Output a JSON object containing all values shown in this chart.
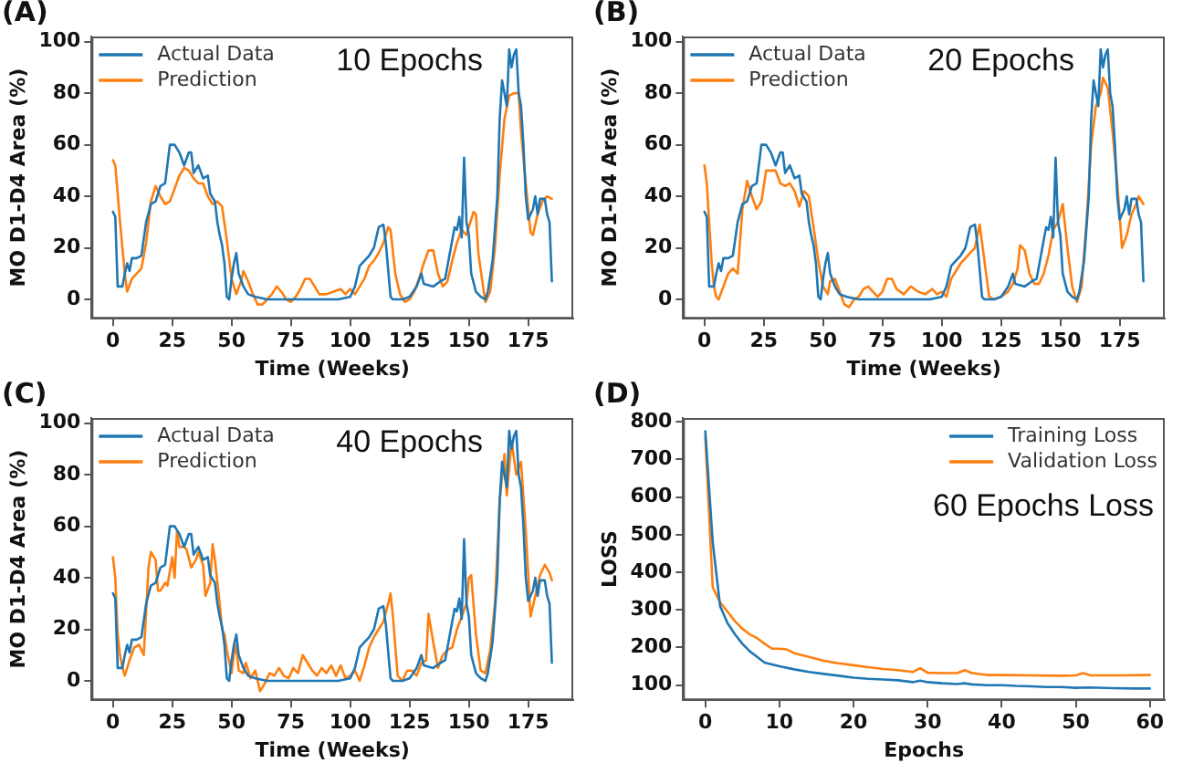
{
  "chart_data": [
    {
      "type": "line",
      "title": "10 Epochs",
      "xlabel": "Time (Weeks)",
      "ylabel": "MO D1-D4 Area (%)",
      "annotations": [
        "(A)"
      ],
      "legend": "top left",
      "xlim": [
        -9,
        194
      ],
      "ylim": [
        -7.5,
        102
      ],
      "xticks": [
        0,
        25,
        50,
        75,
        100,
        125,
        150,
        175
      ],
      "yticks": [
        0,
        20,
        40,
        60,
        80,
        100
      ],
      "series": [
        {
          "name": "Actual Data",
          "color": "#1f77b4",
          "x": [
            0,
            1,
            2,
            4,
            5,
            6,
            7,
            8,
            10,
            12,
            14,
            16,
            18,
            20,
            22,
            24,
            26,
            28,
            30,
            32,
            33,
            34,
            36,
            38,
            40,
            41,
            43,
            44,
            45,
            46,
            47,
            48,
            49,
            50,
            51,
            52,
            53,
            55,
            57,
            60,
            65,
            75,
            85,
            95,
            100,
            102,
            104,
            106,
            108,
            110,
            112,
            114,
            115,
            117,
            118,
            122,
            125,
            128,
            130,
            131,
            135,
            138,
            140,
            142,
            144,
            145,
            146,
            147,
            148,
            149,
            150,
            151,
            153,
            155,
            157,
            158,
            160,
            162,
            163,
            164,
            165,
            166,
            167,
            168,
            169,
            170,
            171,
            172,
            173,
            174,
            175,
            177,
            178,
            179,
            180,
            182,
            183,
            184,
            185
          ],
          "values": [
            34,
            32,
            5,
            5,
            10,
            14,
            11,
            16,
            16,
            17,
            30,
            37,
            38,
            44,
            45,
            60,
            60,
            57,
            52,
            57,
            57,
            49,
            52,
            47,
            48,
            41,
            38,
            30,
            25,
            21,
            14,
            1,
            0,
            8,
            14,
            18,
            10,
            5,
            2,
            1,
            0,
            0,
            0,
            0,
            1,
            5,
            13,
            15,
            17,
            20,
            28,
            29,
            22,
            1,
            0,
            0,
            1,
            5,
            10,
            6,
            5,
            7,
            8,
            18,
            28,
            27,
            32,
            24,
            55,
            30,
            25,
            10,
            3,
            1,
            0,
            3,
            15,
            40,
            70,
            85,
            80,
            75,
            97,
            90,
            95,
            97,
            80,
            75,
            60,
            40,
            31,
            35,
            40,
            33,
            39,
            39,
            33,
            30,
            7
          ]
        },
        {
          "name": "Prediction",
          "color": "#ff7f0e",
          "x": [
            0,
            1,
            3,
            5,
            6,
            8,
            10,
            12,
            14,
            16,
            18,
            20,
            22,
            24,
            26,
            28,
            30,
            32,
            34,
            36,
            38,
            40,
            42,
            44,
            46,
            48,
            50,
            52,
            54,
            55,
            57,
            59,
            61,
            63,
            65,
            67,
            69,
            71,
            73,
            75,
            77,
            79,
            81,
            83,
            85,
            87,
            90,
            93,
            96,
            98,
            100,
            102,
            104,
            106,
            108,
            110,
            112,
            114,
            116,
            117,
            119,
            121,
            123,
            125,
            127,
            129,
            131,
            133,
            135,
            137,
            139,
            141,
            143,
            145,
            147,
            149,
            151,
            152,
            153,
            154,
            156,
            157,
            159,
            161,
            163,
            165,
            167,
            169,
            171,
            172,
            174,
            176,
            177,
            179,
            181,
            183,
            185
          ],
          "values": [
            54,
            52,
            30,
            10,
            3,
            8,
            10,
            12,
            22,
            38,
            44,
            40,
            37,
            38,
            43,
            48,
            51,
            50,
            47,
            45,
            45,
            40,
            37,
            38,
            36,
            23,
            8,
            2,
            7,
            11,
            7,
            2,
            -2,
            -2,
            0,
            2,
            5,
            3,
            0,
            -1,
            1,
            4,
            8,
            8,
            5,
            2,
            2,
            3,
            4,
            2,
            4,
            2,
            5,
            8,
            13,
            15,
            18,
            22,
            28,
            27,
            10,
            2,
            -1,
            0,
            3,
            8,
            14,
            19,
            19,
            10,
            5,
            7,
            15,
            22,
            27,
            25,
            31,
            34,
            33,
            18,
            5,
            -1,
            3,
            20,
            48,
            70,
            79,
            80,
            80,
            65,
            45,
            26,
            25,
            33,
            38,
            40,
            39
          ]
        }
      ]
    },
    {
      "type": "line",
      "title": "20 Epochs",
      "xlabel": "Time (Weeks)",
      "ylabel": "MO D1-D4 Area (%)",
      "annotations": [
        "(B)"
      ],
      "legend": "top left",
      "xlim": [
        -9,
        194
      ],
      "ylim": [
        -7.5,
        102
      ],
      "xticks": [
        0,
        25,
        50,
        75,
        100,
        125,
        150,
        175
      ],
      "yticks": [
        0,
        20,
        40,
        60,
        80,
        100
      ],
      "series": [
        {
          "name": "Actual Data",
          "color": "#1f77b4",
          "x": [
            0,
            1,
            2,
            4,
            5,
            6,
            7,
            8,
            10,
            12,
            14,
            16,
            18,
            20,
            22,
            24,
            26,
            28,
            30,
            32,
            33,
            34,
            36,
            38,
            40,
            41,
            43,
            44,
            45,
            46,
            47,
            48,
            49,
            50,
            51,
            52,
            53,
            55,
            57,
            60,
            65,
            75,
            85,
            95,
            100,
            102,
            104,
            106,
            108,
            110,
            112,
            114,
            115,
            117,
            118,
            122,
            125,
            128,
            130,
            131,
            135,
            138,
            140,
            142,
            144,
            145,
            146,
            147,
            148,
            149,
            150,
            151,
            153,
            155,
            157,
            158,
            160,
            162,
            163,
            164,
            165,
            166,
            167,
            168,
            169,
            170,
            171,
            172,
            173,
            174,
            175,
            177,
            178,
            179,
            180,
            182,
            183,
            184,
            185
          ],
          "values": [
            34,
            32,
            5,
            5,
            10,
            14,
            11,
            16,
            16,
            17,
            30,
            37,
            38,
            44,
            45,
            60,
            60,
            57,
            52,
            57,
            57,
            49,
            52,
            47,
            48,
            41,
            38,
            30,
            25,
            21,
            14,
            1,
            0,
            8,
            14,
            18,
            10,
            5,
            2,
            1,
            0,
            0,
            0,
            0,
            1,
            5,
            13,
            15,
            17,
            20,
            28,
            29,
            22,
            1,
            0,
            0,
            1,
            5,
            10,
            6,
            5,
            7,
            8,
            18,
            28,
            27,
            32,
            24,
            55,
            30,
            25,
            10,
            3,
            1,
            0,
            3,
            15,
            40,
            70,
            85,
            80,
            75,
            97,
            90,
            95,
            97,
            80,
            75,
            60,
            40,
            31,
            35,
            40,
            33,
            39,
            39,
            33,
            30,
            7
          ]
        },
        {
          "name": "Prediction",
          "color": "#ff7f0e",
          "x": [
            0,
            1,
            3,
            4,
            5,
            6,
            8,
            10,
            12,
            14,
            16,
            18,
            20,
            22,
            24,
            26,
            28,
            30,
            32,
            34,
            36,
            38,
            40,
            42,
            44,
            46,
            48,
            50,
            52,
            53,
            55,
            57,
            59,
            61,
            63,
            65,
            67,
            69,
            71,
            73,
            75,
            77,
            79,
            81,
            84,
            87,
            90,
            93,
            96,
            98,
            100,
            102,
            104,
            106,
            108,
            110,
            112,
            114,
            116,
            118,
            120,
            122,
            125,
            128,
            130,
            132,
            133,
            135,
            137,
            139,
            141,
            143,
            145,
            147,
            149,
            151,
            153,
            155,
            156,
            157,
            159,
            161,
            163,
            165,
            167,
            168,
            170,
            172,
            174,
            176,
            178,
            180,
            182,
            183,
            185
          ],
          "values": [
            52,
            45,
            15,
            5,
            1,
            0,
            5,
            10,
            12,
            10,
            35,
            46,
            40,
            35,
            38,
            50,
            50,
            50,
            45,
            44,
            45,
            42,
            36,
            42,
            40,
            28,
            15,
            5,
            2,
            7,
            8,
            3,
            -2,
            -3,
            0,
            1,
            4,
            5,
            3,
            1,
            3,
            8,
            8,
            4,
            2,
            5,
            3,
            2,
            4,
            2,
            3,
            1,
            8,
            11,
            14,
            16,
            18,
            20,
            29,
            15,
            1,
            0,
            1,
            3,
            6,
            12,
            21,
            19,
            10,
            6,
            6,
            10,
            17,
            27,
            30,
            37,
            20,
            5,
            2,
            -1,
            5,
            30,
            60,
            75,
            80,
            86,
            82,
            65,
            45,
            20,
            25,
            33,
            37,
            40,
            37
          ]
        }
      ]
    },
    {
      "type": "line",
      "title": "40 Epochs",
      "xlabel": "Time (Weeks)",
      "ylabel": "MO D1-D4 Area (%)",
      "annotations": [
        "(C)"
      ],
      "legend": "top left",
      "xlim": [
        -9,
        194
      ],
      "ylim": [
        -7.5,
        102
      ],
      "xticks": [
        0,
        25,
        50,
        75,
        100,
        125,
        150,
        175
      ],
      "yticks": [
        0,
        20,
        40,
        60,
        80,
        100
      ],
      "series": [
        {
          "name": "Actual Data",
          "color": "#1f77b4",
          "x": [
            0,
            1,
            2,
            4,
            5,
            6,
            7,
            8,
            10,
            12,
            14,
            16,
            18,
            20,
            22,
            24,
            26,
            28,
            30,
            32,
            33,
            34,
            36,
            38,
            40,
            41,
            43,
            44,
            45,
            46,
            47,
            48,
            49,
            50,
            51,
            52,
            53,
            55,
            57,
            60,
            65,
            75,
            85,
            95,
            100,
            102,
            104,
            106,
            108,
            110,
            112,
            114,
            115,
            117,
            118,
            122,
            125,
            128,
            130,
            131,
            135,
            138,
            140,
            142,
            144,
            145,
            146,
            147,
            148,
            149,
            150,
            151,
            153,
            155,
            157,
            158,
            160,
            162,
            163,
            164,
            165,
            166,
            167,
            168,
            169,
            170,
            171,
            172,
            173,
            174,
            175,
            177,
            178,
            179,
            180,
            182,
            183,
            184,
            185
          ],
          "values": [
            34,
            32,
            5,
            5,
            10,
            14,
            11,
            16,
            16,
            17,
            30,
            37,
            38,
            44,
            45,
            60,
            60,
            57,
            52,
            57,
            57,
            49,
            52,
            47,
            48,
            41,
            38,
            30,
            25,
            21,
            14,
            1,
            0,
            8,
            14,
            18,
            10,
            5,
            2,
            1,
            0,
            0,
            0,
            0,
            1,
            5,
            13,
            15,
            17,
            20,
            28,
            29,
            22,
            1,
            0,
            0,
            1,
            5,
            10,
            6,
            5,
            7,
            8,
            18,
            28,
            27,
            32,
            24,
            55,
            30,
            25,
            10,
            3,
            1,
            0,
            3,
            15,
            40,
            70,
            85,
            80,
            75,
            97,
            90,
            95,
            97,
            80,
            75,
            60,
            40,
            31,
            35,
            40,
            33,
            39,
            39,
            33,
            30,
            7
          ]
        },
        {
          "name": "Prediction",
          "color": "#ff7f0e",
          "x": [
            0,
            1,
            2,
            3,
            4,
            5,
            7,
            9,
            11,
            13,
            15,
            16,
            18,
            19,
            20,
            22,
            23,
            25,
            26,
            27,
            28,
            30,
            31,
            33,
            35,
            36,
            38,
            39,
            41,
            42,
            43,
            45,
            46,
            47,
            48,
            50,
            51,
            52,
            53,
            55,
            56,
            58,
            60,
            62,
            64,
            66,
            68,
            70,
            72,
            74,
            76,
            78,
            80,
            82,
            84,
            86,
            88,
            90,
            92,
            94,
            96,
            98,
            100,
            102,
            104,
            106,
            108,
            110,
            112,
            114,
            116,
            117,
            118,
            120,
            122,
            124,
            126,
            128,
            130,
            132,
            133,
            135,
            137,
            139,
            141,
            143,
            145,
            147,
            149,
            150,
            151,
            153,
            155,
            157,
            159,
            161,
            163,
            165,
            166,
            168,
            170,
            172,
            174,
            176,
            178,
            180,
            182,
            184,
            185
          ],
          "values": [
            48,
            40,
            18,
            10,
            5,
            2,
            8,
            13,
            14,
            10,
            44,
            50,
            47,
            35,
            35,
            38,
            37,
            48,
            40,
            58,
            52,
            52,
            51,
            44,
            47,
            50,
            45,
            33,
            38,
            53,
            47,
            30,
            20,
            18,
            12,
            3,
            10,
            14,
            4,
            3,
            7,
            1,
            4,
            -4,
            -1,
            3,
            2,
            5,
            2,
            1,
            5,
            3,
            10,
            7,
            4,
            2,
            5,
            3,
            6,
            2,
            6,
            1,
            2,
            4,
            0,
            6,
            13,
            17,
            20,
            23,
            30,
            34,
            25,
            2,
            0,
            4,
            4,
            2,
            7,
            8,
            26,
            15,
            5,
            10,
            12,
            13,
            20,
            25,
            30,
            40,
            41,
            18,
            4,
            3,
            12,
            30,
            70,
            88,
            72,
            93,
            80,
            85,
            58,
            25,
            33,
            41,
            45,
            42,
            39
          ]
        }
      ]
    },
    {
      "type": "line",
      "title": "60 Epochs Loss",
      "xlabel": "Epochs",
      "ylabel": "LOSS",
      "annotations": [
        "(D)"
      ],
      "legend": "top right",
      "xlim": [
        -3,
        62
      ],
      "ylim": [
        60,
        810
      ],
      "xticks": [
        0,
        10,
        20,
        30,
        40,
        50,
        60
      ],
      "yticks": [
        100,
        200,
        300,
        400,
        500,
        600,
        700,
        800
      ],
      "series": [
        {
          "name": "Training Loss",
          "color": "#1f77b4",
          "x": [
            0,
            1,
            2,
            3,
            4,
            5,
            6,
            7,
            8,
            9,
            10,
            12,
            14,
            16,
            18,
            20,
            22,
            24,
            26,
            28,
            29,
            30,
            32,
            34,
            35,
            36,
            38,
            40,
            42,
            44,
            46,
            48,
            50,
            52,
            55,
            58,
            60
          ],
          "values": [
            775,
            480,
            310,
            265,
            235,
            210,
            190,
            175,
            160,
            155,
            150,
            142,
            135,
            130,
            125,
            120,
            117,
            115,
            113,
            108,
            112,
            108,
            105,
            103,
            105,
            102,
            100,
            100,
            98,
            97,
            95,
            95,
            93,
            94,
            92,
            91,
            91
          ]
        },
        {
          "name": "Validation Loss",
          "color": "#ff7f0e",
          "x": [
            0,
            1,
            2,
            3,
            4,
            5,
            6,
            7,
            8,
            9,
            10,
            11,
            12,
            14,
            16,
            18,
            20,
            22,
            24,
            26,
            28,
            29,
            30,
            32,
            34,
            35,
            36,
            38,
            40,
            44,
            48,
            50,
            51,
            52,
            56,
            60
          ],
          "values": [
            760,
            360,
            320,
            295,
            270,
            250,
            235,
            225,
            210,
            197,
            197,
            195,
            185,
            175,
            165,
            158,
            153,
            148,
            143,
            140,
            135,
            145,
            133,
            132,
            132,
            140,
            132,
            127,
            127,
            126,
            125,
            126,
            132,
            126,
            126,
            127
          ]
        }
      ]
    }
  ]
}
